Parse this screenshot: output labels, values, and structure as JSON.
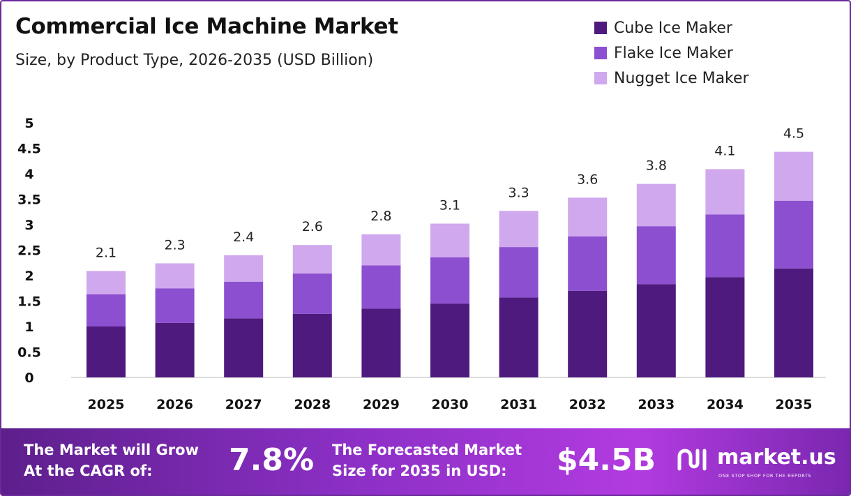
{
  "header": {
    "title": "Commercial Ice Machine Market",
    "subtitle": "Size, by Product Type, 2026-2035 (USD Billion)"
  },
  "legend": [
    {
      "label": "Cube Ice Maker",
      "color": "#4e1a7e"
    },
    {
      "label": "Flake Ice Maker",
      "color": "#8c4fd0"
    },
    {
      "label": "Nugget Ice Maker",
      "color": "#d0a8ee"
    }
  ],
  "chart_data": {
    "type": "bar",
    "stacked": true,
    "categories": [
      "2025",
      "2026",
      "2027",
      "2028",
      "2029",
      "2030",
      "2031",
      "2032",
      "2033",
      "2034",
      "2035"
    ],
    "series": [
      {
        "name": "Cube Ice Maker",
        "color": "#4e1a7e",
        "values": [
          1.0,
          1.07,
          1.16,
          1.25,
          1.35,
          1.45,
          1.57,
          1.7,
          1.83,
          1.97,
          2.14
        ]
      },
      {
        "name": "Flake Ice Maker",
        "color": "#8c4fd0",
        "values": [
          0.63,
          0.68,
          0.72,
          0.79,
          0.85,
          0.91,
          0.99,
          1.07,
          1.14,
          1.23,
          1.33
        ]
      },
      {
        "name": "Nugget Ice Maker",
        "color": "#d0a8ee",
        "values": [
          0.46,
          0.49,
          0.52,
          0.56,
          0.61,
          0.66,
          0.71,
          0.76,
          0.83,
          0.89,
          0.96
        ]
      }
    ],
    "totals_labels": [
      "2.1",
      "2.3",
      "2.4",
      "2.6",
      "2.8",
      "3.1",
      "3.3",
      "3.6",
      "3.8",
      "4.1",
      "4.5"
    ],
    "yticks": [
      "0",
      "0.5",
      "1",
      "1.5",
      "2",
      "2.5",
      "3",
      "3.5",
      "4",
      "4.5",
      "5"
    ],
    "ylim": [
      0,
      5
    ],
    "grid": false,
    "legend_position": "top-right"
  },
  "footer": {
    "cagr_text_line1": "The Market will Grow",
    "cagr_text_line2": "At the CAGR of:",
    "cagr_value": "7.8%",
    "forecast_text_line1": "The Forecasted Market",
    "forecast_text_line2": "Size for 2035 in USD:",
    "forecast_value": "$4.5B",
    "brand_name": "market.us",
    "brand_tagline": "ONE STOP SHOP FOR THE REPORTS"
  }
}
